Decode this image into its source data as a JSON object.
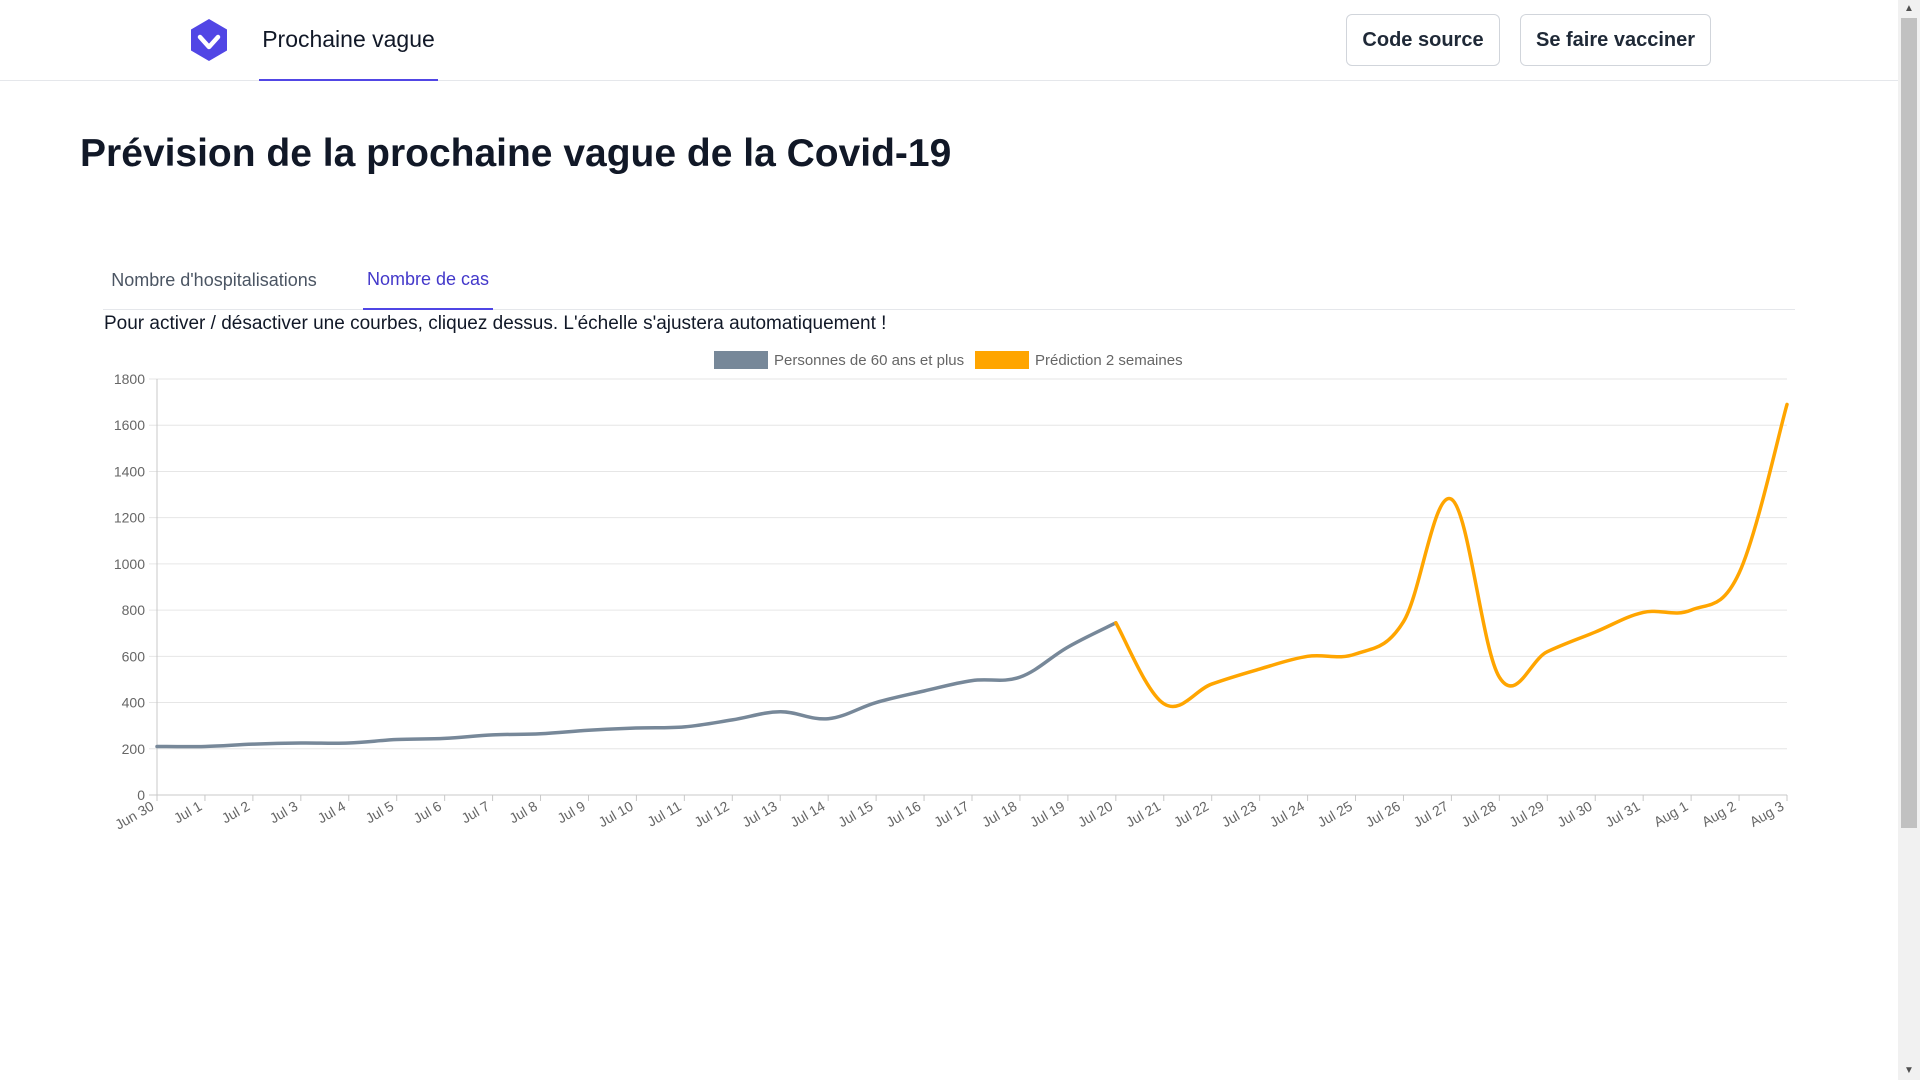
{
  "nav": {
    "title": "Prochaine vague",
    "source_button": "Code source",
    "vaccinate_button": "Se faire vacciner",
    "accent_color": "#5146e5"
  },
  "page": {
    "title": "Prévision de la prochaine vague de la Covid-19"
  },
  "tabs": [
    {
      "label": "Nombre d'hospitalisations",
      "active": false
    },
    {
      "label": "Nombre de cas",
      "active": true
    }
  ],
  "hint": "Pour activer / désactiver une courbes, cliquez dessus. L'échelle s'ajustera automatiquement !",
  "chart_data": {
    "type": "line",
    "title": "",
    "xlabel": "",
    "ylabel": "",
    "ylim": [
      0,
      1800
    ],
    "yticks": [
      0,
      200,
      400,
      600,
      800,
      1000,
      1200,
      1400,
      1600,
      1800
    ],
    "grid": true,
    "legend": "top-center",
    "categories": [
      "Jun 30",
      "Jul 1",
      "Jul 2",
      "Jul 3",
      "Jul 4",
      "Jul 5",
      "Jul 6",
      "Jul 7",
      "Jul 8",
      "Jul 9",
      "Jul 10",
      "Jul 11",
      "Jul 12",
      "Jul 13",
      "Jul 14",
      "Jul 15",
      "Jul 16",
      "Jul 17",
      "Jul 18",
      "Jul 19",
      "Jul 20",
      "Jul 21",
      "Jul 22",
      "Jul 23",
      "Jul 24",
      "Jul 25",
      "Jul 26",
      "Jul 27",
      "Jul 28",
      "Jul 29",
      "Jul 30",
      "Jul 31",
      "Aug 1",
      "Aug 2",
      "Aug 3"
    ],
    "series": [
      {
        "name": "Personnes de 60 ans et plus",
        "color": "#778899",
        "values": [
          210,
          210,
          220,
          225,
          225,
          240,
          245,
          260,
          265,
          280,
          290,
          295,
          325,
          360,
          330,
          400,
          450,
          495,
          510,
          640,
          745,
          null,
          null,
          null,
          null,
          null,
          null,
          null,
          null,
          null,
          null,
          null,
          null,
          null,
          null
        ]
      },
      {
        "name": "Prédiction 2 semaines",
        "color": "#ffa500",
        "values": [
          null,
          null,
          null,
          null,
          null,
          null,
          null,
          null,
          null,
          null,
          null,
          null,
          null,
          null,
          null,
          null,
          null,
          null,
          null,
          null,
          745,
          395,
          480,
          545,
          600,
          610,
          750,
          1280,
          510,
          620,
          705,
          790,
          800,
          960,
          1690
        ]
      }
    ]
  }
}
